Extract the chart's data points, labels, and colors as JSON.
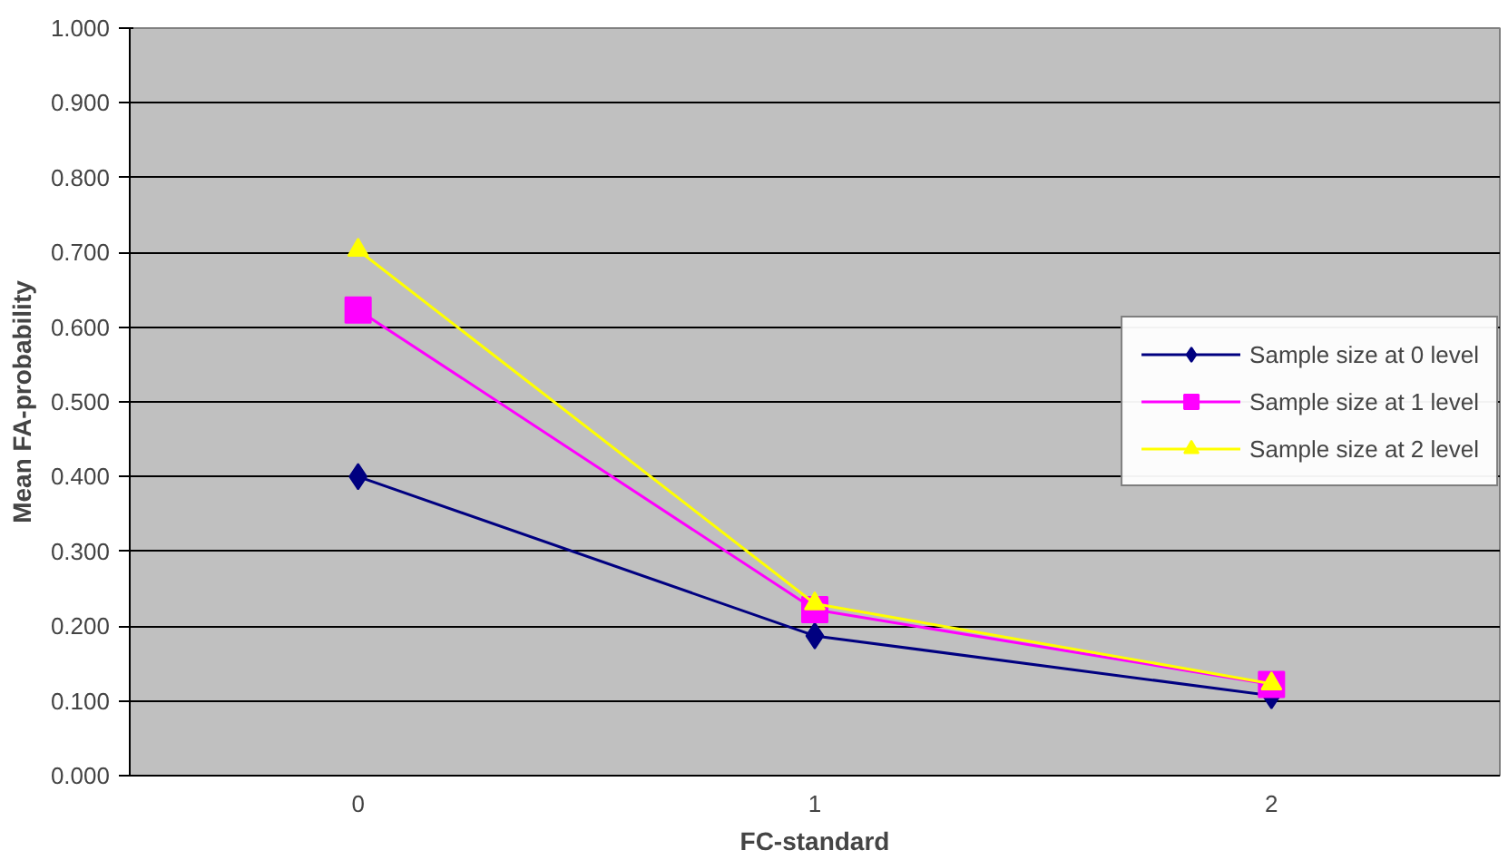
{
  "chart_data": {
    "type": "line",
    "xlabel": "FC-standard",
    "ylabel": "Mean FA-probability",
    "categories": [
      "0",
      "1",
      "2"
    ],
    "series": [
      {
        "name": "Sample size at 0 level",
        "color": "#000080",
        "marker": "diamond",
        "values": [
          0.4,
          0.187,
          0.107
        ]
      },
      {
        "name": "Sample size at 1 level",
        "color": "#ff00ff",
        "marker": "square",
        "values": [
          0.623,
          0.222,
          0.122
        ]
      },
      {
        "name": "Sample size at 2 level",
        "color": "#ffff00",
        "marker": "triangle",
        "values": [
          0.703,
          0.23,
          0.123
        ]
      }
    ],
    "ylim": [
      0,
      1
    ],
    "yticks": [
      {
        "value": 0,
        "label": "0.000"
      },
      {
        "value": 0.1,
        "label": "0.100"
      },
      {
        "value": 0.2,
        "label": "0.200"
      },
      {
        "value": 0.3,
        "label": "0.300"
      },
      {
        "value": 0.4,
        "label": "0.400"
      },
      {
        "value": 0.5,
        "label": "0.500"
      },
      {
        "value": 0.6,
        "label": "0.600"
      },
      {
        "value": 0.7,
        "label": "0.700"
      },
      {
        "value": 0.8,
        "label": "0.800"
      },
      {
        "value": 0.9,
        "label": "0.900"
      },
      {
        "value": 1,
        "label": "1.000"
      }
    ],
    "grid": "y",
    "legend": "right",
    "line_style": "solid"
  }
}
